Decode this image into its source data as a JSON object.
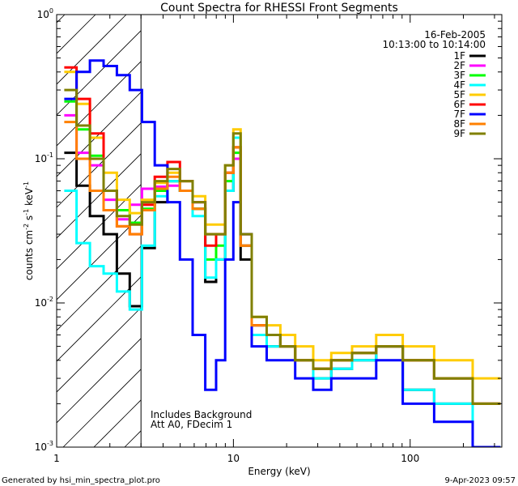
{
  "chart_data": {
    "type": "line",
    "title": "Count Spectra for RHESSI Front Segments",
    "xlabel": "Energy (keV)",
    "ylabel_parts": [
      "counts cm",
      "-2",
      " s",
      "-1",
      " keV",
      "-1"
    ],
    "x_scale": "log",
    "y_scale": "log",
    "xlim": [
      1,
      330
    ],
    "ylim": [
      0.001,
      1
    ],
    "x_ticks": [
      {
        "value": 1,
        "label": "1"
      },
      {
        "value": 10,
        "label": "10"
      },
      {
        "value": 100,
        "label": "100"
      }
    ],
    "y_ticks": [
      {
        "value": 1,
        "base": "10",
        "exp": "0"
      },
      {
        "value": 0.1,
        "base": "10",
        "exp": "-1"
      },
      {
        "value": 0.01,
        "base": "10",
        "exp": "-2"
      },
      {
        "value": 0.001,
        "base": "10",
        "exp": "-3"
      }
    ],
    "shaded_region_xmax": 3.0,
    "legend": {
      "position": "top-right",
      "date": "16-Feb-2005",
      "time_range": "10:13:00 to 10:14:00"
    },
    "annotations": [
      "Includes Background",
      "Att A0, FDecim 1"
    ],
    "series": [
      {
        "name": "1F",
        "color": "#000000",
        "values": [
          0.11,
          0.065,
          0.04,
          0.03,
          0.016,
          0.0095,
          0.024,
          0.05,
          0.07,
          0.06,
          0.045,
          0.014,
          0.02,
          0.06,
          0.12,
          0.02,
          0.006,
          0.005,
          0.005,
          0.004,
          0.003,
          0.0035,
          0.004,
          0.005,
          0.0025,
          0.002,
          0.001
        ]
      },
      {
        "name": "2F",
        "color": "#ff00ff",
        "values": [
          0.2,
          0.11,
          0.09,
          0.052,
          0.038,
          0.048,
          0.062,
          0.064,
          0.065,
          0.06,
          0.05,
          0.03,
          0.03,
          0.08,
          0.1,
          0.03,
          0.007,
          0.006,
          0.005,
          0.004,
          0.0035,
          0.004,
          0.0045,
          0.005,
          0.004,
          0.003,
          0.002
        ]
      },
      {
        "name": "3F",
        "color": "#00ff00",
        "values": [
          0.25,
          0.16,
          0.105,
          0.06,
          0.044,
          0.036,
          0.045,
          0.06,
          0.07,
          0.06,
          0.045,
          0.02,
          0.025,
          0.07,
          0.11,
          0.025,
          0.007,
          0.006,
          0.005,
          0.004,
          0.0035,
          0.004,
          0.0045,
          0.005,
          0.004,
          0.003,
          0.002
        ]
      },
      {
        "name": "4F",
        "color": "#00ffff",
        "values": [
          0.06,
          0.026,
          0.018,
          0.016,
          0.012,
          0.009,
          0.025,
          0.055,
          0.07,
          0.06,
          0.04,
          0.015,
          0.02,
          0.06,
          0.14,
          0.025,
          0.006,
          0.005,
          0.005,
          0.004,
          0.003,
          0.0035,
          0.004,
          0.005,
          0.0025,
          0.002,
          0.001
        ]
      },
      {
        "name": "5F",
        "color": "#ffcc00",
        "values": [
          0.4,
          0.24,
          0.14,
          0.08,
          0.052,
          0.042,
          0.052,
          0.068,
          0.08,
          0.07,
          0.055,
          0.035,
          0.035,
          0.09,
          0.16,
          0.03,
          0.008,
          0.007,
          0.006,
          0.005,
          0.004,
          0.0045,
          0.005,
          0.006,
          0.005,
          0.004,
          0.003
        ]
      },
      {
        "name": "6F",
        "color": "#ff0000",
        "values": [
          0.43,
          0.26,
          0.15,
          0.06,
          0.034,
          0.03,
          0.048,
          0.075,
          0.095,
          0.07,
          0.05,
          0.025,
          0.03,
          0.08,
          0.12,
          0.025,
          0.007,
          0.006,
          0.005,
          0.004,
          0.0035,
          0.004,
          0.0045,
          0.005,
          0.004,
          0.003,
          0.002
        ]
      },
      {
        "name": "7F",
        "color": "#0000ff",
        "values": [
          0.26,
          0.4,
          0.48,
          0.44,
          0.38,
          0.3,
          0.18,
          0.09,
          0.05,
          0.02,
          0.006,
          0.0025,
          0.004,
          0.02,
          0.05,
          0.03,
          0.005,
          0.004,
          0.004,
          0.003,
          0.0025,
          0.003,
          0.003,
          0.004,
          0.002,
          0.0015,
          0.001
        ]
      },
      {
        "name": "8F",
        "color": "#ff8000",
        "values": [
          0.18,
          0.1,
          0.06,
          0.044,
          0.034,
          0.03,
          0.044,
          0.062,
          0.075,
          0.06,
          0.045,
          0.03,
          0.03,
          0.08,
          0.12,
          0.025,
          0.007,
          0.006,
          0.005,
          0.004,
          0.0035,
          0.004,
          0.0045,
          0.005,
          0.004,
          0.003,
          0.002
        ]
      },
      {
        "name": "9F",
        "color": "#808000",
        "values": [
          0.3,
          0.17,
          0.1,
          0.06,
          0.04,
          0.035,
          0.05,
          0.07,
          0.085,
          0.07,
          0.05,
          0.03,
          0.03,
          0.09,
          0.15,
          0.03,
          0.008,
          0.006,
          0.005,
          0.004,
          0.0035,
          0.004,
          0.0045,
          0.005,
          0.004,
          0.003,
          0.002
        ]
      }
    ],
    "energy_bins": [
      1.2,
      1.4,
      1.7,
      2.0,
      2.4,
      2.8,
      3.3,
      3.9,
      4.6,
      5.4,
      6.4,
      7.5,
      8.5,
      9.5,
      10.5,
      11.5,
      14,
      17,
      20,
      25,
      32,
      40,
      55,
      75,
      110,
      170,
      300
    ]
  },
  "footer": {
    "generated_by": "Generated by hsi_min_spectra_plot.pro",
    "timestamp": "9-Apr-2023 09:57"
  }
}
